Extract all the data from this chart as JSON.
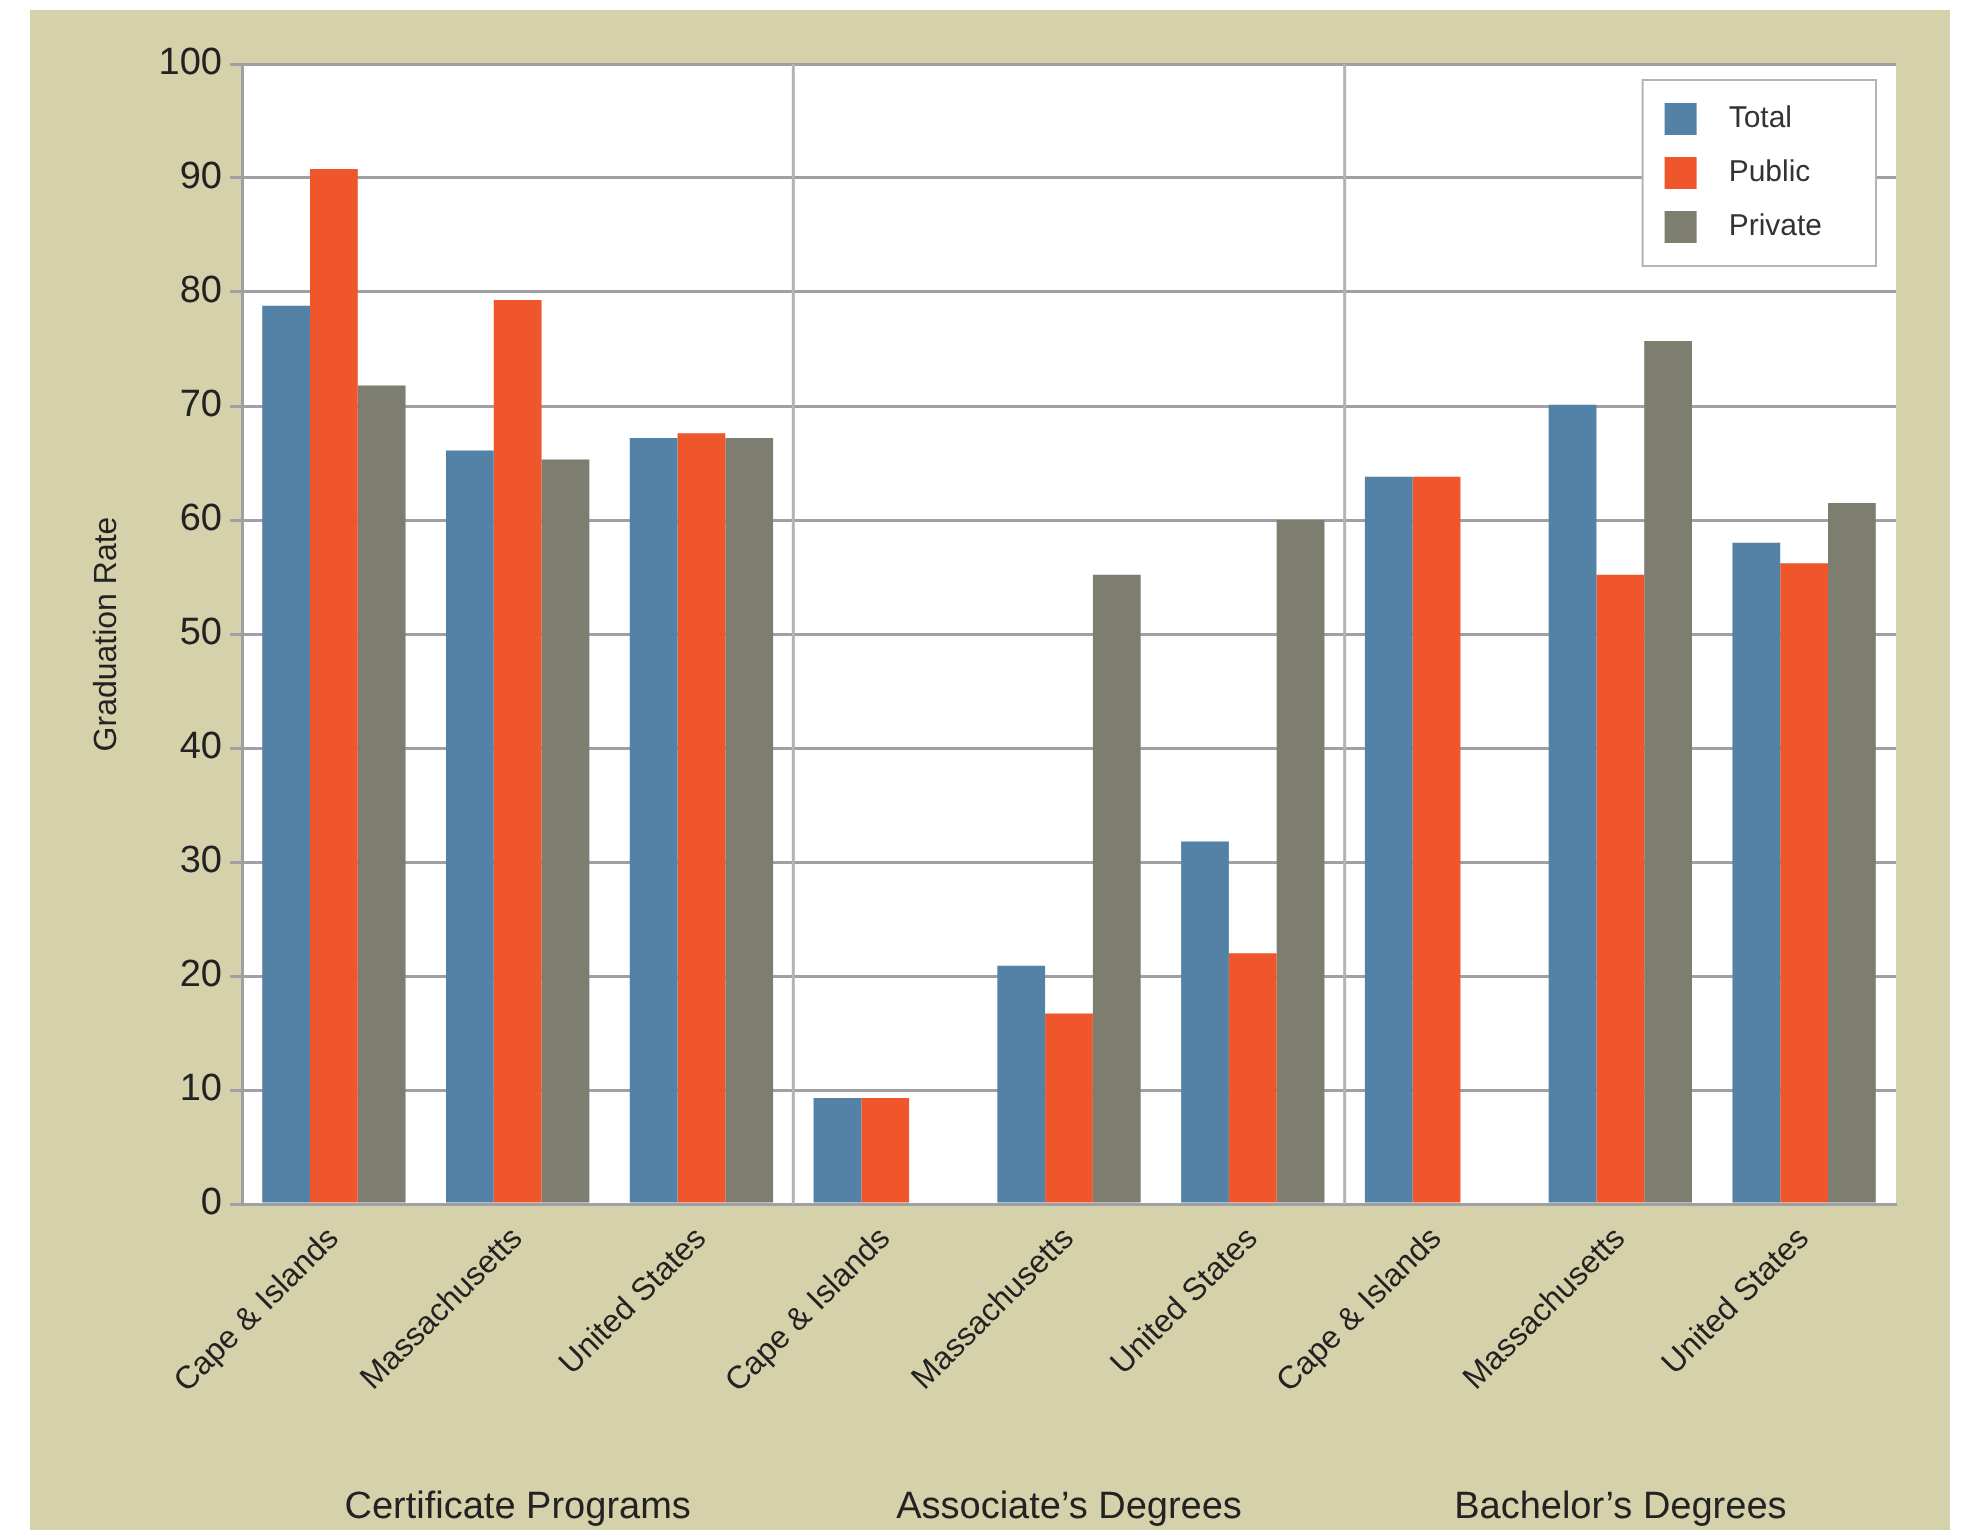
{
  "chart_data": {
    "type": "bar",
    "ylabel": "Graduation Rate",
    "categories": [
      "Cape & Islands",
      "Massachusetts",
      "United States",
      "Cape & Islands",
      "Massachusetts",
      "United States",
      "Cape & Islands",
      "Massachusetts",
      "United States"
    ],
    "series": [
      {
        "name": "Total",
        "color": "#5482a6",
        "values": [
          78.8,
          66.1,
          67.2,
          9.3,
          20.9,
          31.8,
          63.8,
          70.1,
          58.0
        ]
      },
      {
        "name": "Public",
        "color": "#ef562b",
        "values": [
          90.8,
          79.3,
          67.6,
          9.3,
          16.7,
          22.0,
          63.8,
          55.2,
          56.2
        ]
      },
      {
        "name": "Private",
        "color": "#7d7d70",
        "values": [
          71.8,
          65.3,
          67.2,
          null,
          55.2,
          60.0,
          null,
          75.7,
          61.5
        ]
      }
    ],
    "annotations": [
      "Certificate Programs",
      "Associate’s Degrees",
      "Bachelor’s Degrees"
    ],
    "ylim": [
      0,
      100
    ],
    "yticks": [
      0,
      10,
      20,
      30,
      40,
      50,
      60,
      70,
      80,
      90,
      100
    ],
    "grid": "y",
    "legend": "top right"
  }
}
